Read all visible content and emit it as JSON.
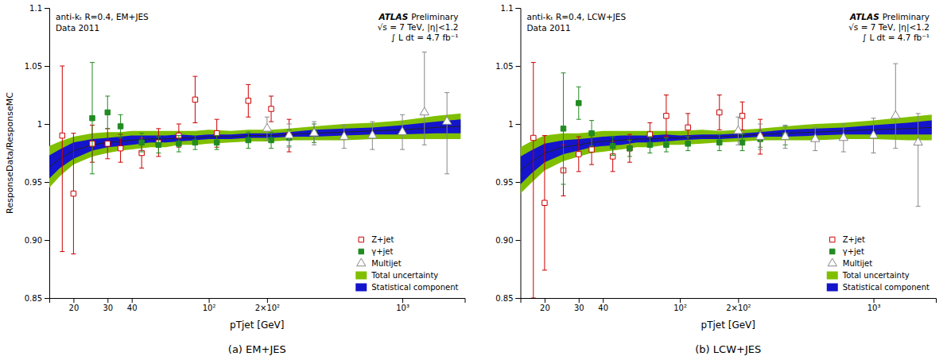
{
  "chart_data": [
    {
      "type": "scatter",
      "title": "(a) EM+JES",
      "xlabel": "pTjet [GeV]",
      "ylabel": "ResponseData/ResponseMC",
      "annotations": [
        "anti-kₜ R=0.4, EM+JES",
        "Data 2011",
        "ATLAS",
        "Preliminary",
        "√s = 7 TeV, |η|<1.2",
        "∫ L dt = 4.7 fb⁻¹"
      ],
      "log": "x",
      "xlim": [
        15,
        2100
      ],
      "ylim": [
        0.85,
        1.1
      ],
      "xticks": [
        20,
        30,
        40,
        {
          "value": 100,
          "label": "10²"
        },
        {
          "value": 200,
          "label": "2×10²"
        },
        {
          "value": 1000,
          "label": "10³"
        }
      ],
      "yticks": [
        0.85,
        {
          "value": 0.9,
          "label": "0.90"
        },
        0.95,
        1,
        1.05,
        1.1
      ],
      "grid": false,
      "legend": "lower right",
      "series": [
        {
          "name": "Z+jet",
          "type": "scatter",
          "marker": "square-open",
          "color": "#cc0000",
          "x": [
            17.5,
            20,
            25,
            30,
            35,
            45,
            55,
            70,
            85,
            110,
            160,
            210,
            260
          ],
          "values": [
            0.99,
            0.94,
            0.983,
            0.983,
            0.979,
            0.975,
            0.984,
            0.99,
            1.021,
            0.992,
            1.02,
            1.013,
            0.99
          ],
          "error_lo": [
            0.1,
            0.052,
            0.016,
            0.013,
            0.012,
            0.013,
            0.012,
            0.01,
            0.02,
            0.012,
            0.014,
            0.011,
            0.014
          ],
          "error_hi": [
            0.06,
            0.052,
            0.016,
            0.013,
            0.012,
            0.013,
            0.012,
            0.01,
            0.02,
            0.012,
            0.014,
            0.011,
            0.014
          ]
        },
        {
          "name": "γ+jet",
          "type": "scatter",
          "marker": "square",
          "color": "#228B22",
          "x": [
            25,
            30,
            35,
            45,
            55,
            70,
            85,
            110,
            160,
            210,
            260,
            350
          ],
          "values": [
            1.005,
            1.01,
            0.998,
            0.984,
            0.982,
            0.983,
            0.984,
            0.984,
            0.986,
            0.986,
            0.988,
            0.992
          ],
          "error_lo": [
            0.048,
            0.014,
            0.01,
            0.008,
            0.007,
            0.007,
            0.006,
            0.006,
            0.007,
            0.007,
            0.007,
            0.008
          ],
          "error_hi": [
            0.048,
            0.014,
            0.01,
            0.008,
            0.007,
            0.007,
            0.006,
            0.006,
            0.007,
            0.007,
            0.007,
            0.008
          ]
        },
        {
          "name": "Multijet",
          "type": "scatter",
          "marker": "triangle-open",
          "color": "#888888",
          "x": [
            200,
            260,
            350,
            500,
            700,
            1000,
            1300,
            1700
          ],
          "values": [
            0.996,
            0.99,
            0.992,
            0.989,
            0.99,
            0.993,
            1.01,
            1.002
          ],
          "error_lo": [
            0.01,
            0.01,
            0.01,
            0.01,
            0.012,
            0.015,
            0.028,
            0.045
          ],
          "error_hi": [
            0.01,
            0.01,
            0.01,
            0.01,
            0.012,
            0.015,
            0.052,
            0.025
          ]
        },
        {
          "name": "Total uncertainty",
          "type": "band",
          "color": "#7FBF00",
          "x": [
            15,
            17,
            20,
            25,
            30,
            35,
            40,
            50,
            60,
            70,
            85,
            100,
            130,
            160,
            210,
            260,
            350,
            500,
            700,
            1000,
            1500,
            2000
          ],
          "values": [
            0.963,
            0.97,
            0.977,
            0.982,
            0.984,
            0.985,
            0.986,
            0.987,
            0.987,
            0.988,
            0.988,
            0.989,
            0.989,
            0.99,
            0.99,
            0.991,
            0.992,
            0.993,
            0.994,
            0.995,
            0.997,
            0.998
          ],
          "error_lo": [
            0.018,
            0.015,
            0.012,
            0.01,
            0.009,
            0.008,
            0.008,
            0.007,
            0.007,
            0.006,
            0.006,
            0.006,
            0.005,
            0.005,
            0.005,
            0.005,
            0.006,
            0.007,
            0.007,
            0.008,
            0.01,
            0.011
          ],
          "error_hi": [
            0.018,
            0.015,
            0.012,
            0.01,
            0.009,
            0.008,
            0.008,
            0.007,
            0.007,
            0.006,
            0.006,
            0.006,
            0.005,
            0.005,
            0.005,
            0.005,
            0.006,
            0.007,
            0.007,
            0.008,
            0.01,
            0.011
          ]
        },
        {
          "name": "Statistical component",
          "type": "band",
          "color": "#1414CC",
          "x": [
            15,
            17,
            20,
            25,
            30,
            35,
            40,
            50,
            60,
            70,
            85,
            100,
            130,
            160,
            210,
            260,
            350,
            500,
            700,
            1000,
            1500,
            2000
          ],
          "values": [
            0.963,
            0.97,
            0.977,
            0.982,
            0.984,
            0.985,
            0.986,
            0.987,
            0.987,
            0.988,
            0.988,
            0.989,
            0.989,
            0.99,
            0.99,
            0.991,
            0.992,
            0.993,
            0.994,
            0.995,
            0.997,
            0.998
          ],
          "error_lo": [
            0.01,
            0.008,
            0.007,
            0.005,
            0.004,
            0.004,
            0.004,
            0.003,
            0.003,
            0.003,
            0.002,
            0.002,
            0.002,
            0.002,
            0.002,
            0.002,
            0.003,
            0.003,
            0.003,
            0.004,
            0.005,
            0.006
          ],
          "error_hi": [
            0.01,
            0.008,
            0.007,
            0.005,
            0.004,
            0.004,
            0.004,
            0.003,
            0.003,
            0.003,
            0.002,
            0.002,
            0.002,
            0.002,
            0.002,
            0.002,
            0.003,
            0.003,
            0.003,
            0.004,
            0.005,
            0.006
          ]
        }
      ]
    },
    {
      "type": "scatter",
      "title": "(b) LCW+JES",
      "xlabel": "pTjet [GeV]",
      "annotations": [
        "anti-kₜ R=0.4, LCW+JES",
        "Data 2011",
        "ATLAS",
        "Preliminary",
        "√s = 7 TeV, |η|<1.2",
        "∫ L dt = 4.7 fb⁻¹"
      ],
      "log": "x",
      "xlim": [
        15,
        2100
      ],
      "ylim": [
        0.85,
        1.1
      ],
      "xticks": [
        20,
        30,
        40,
        {
          "value": 100,
          "label": "10²"
        },
        {
          "value": 200,
          "label": "2×10²"
        },
        {
          "value": 1000,
          "label": "10³"
        }
      ],
      "yticks": [
        0.85,
        {
          "value": 0.9,
          "label": "0.90"
        },
        0.95,
        1,
        1.05,
        1.1
      ],
      "grid": false,
      "legend": "lower right",
      "series": [
        {
          "name": "Z+jet",
          "type": "scatter",
          "marker": "square-open",
          "color": "#cc0000",
          "x": [
            17.5,
            20,
            25,
            30,
            35,
            45,
            55,
            70,
            85,
            110,
            160,
            210,
            260
          ],
          "values": [
            0.988,
            0.932,
            0.96,
            0.974,
            0.978,
            0.972,
            0.979,
            0.991,
            1.007,
            0.997,
            1.01,
            1.007,
            0.989
          ],
          "error_lo": [
            0.138,
            0.058,
            0.022,
            0.015,
            0.013,
            0.013,
            0.012,
            0.01,
            0.018,
            0.012,
            0.015,
            0.012,
            0.015
          ],
          "error_hi": [
            0.065,
            0.058,
            0.022,
            0.015,
            0.013,
            0.013,
            0.012,
            0.01,
            0.018,
            0.012,
            0.015,
            0.012,
            0.015
          ]
        },
        {
          "name": "γ+jet",
          "type": "scatter",
          "marker": "square",
          "color": "#228B22",
          "x": [
            25,
            30,
            35,
            45,
            55,
            70,
            85,
            110,
            160,
            210,
            260,
            350
          ],
          "values": [
            0.996,
            1.018,
            0.992,
            0.981,
            0.979,
            0.982,
            0.982,
            0.983,
            0.984,
            0.984,
            0.987,
            0.99
          ],
          "error_lo": [
            0.048,
            0.014,
            0.011,
            0.008,
            0.007,
            0.007,
            0.006,
            0.006,
            0.007,
            0.007,
            0.007,
            0.008
          ],
          "error_hi": [
            0.048,
            0.014,
            0.011,
            0.008,
            0.007,
            0.007,
            0.006,
            0.006,
            0.007,
            0.007,
            0.007,
            0.008
          ]
        },
        {
          "name": "Multijet",
          "type": "scatter",
          "marker": "triangle-open",
          "color": "#888888",
          "x": [
            200,
            260,
            350,
            500,
            700,
            1000,
            1300,
            1700
          ],
          "values": [
            0.994,
            0.989,
            0.989,
            0.987,
            0.988,
            0.99,
            1.007,
            0.984
          ],
          "error_lo": [
            0.012,
            0.011,
            0.01,
            0.01,
            0.012,
            0.015,
            0.028,
            0.055
          ],
          "error_hi": [
            0.012,
            0.011,
            0.01,
            0.01,
            0.012,
            0.015,
            0.045,
            0.025
          ]
        },
        {
          "name": "Total uncertainty",
          "type": "band",
          "color": "#7FBF00",
          "x": [
            15,
            17,
            20,
            25,
            30,
            35,
            40,
            50,
            60,
            70,
            85,
            100,
            130,
            160,
            210,
            260,
            350,
            500,
            700,
            1000,
            1500,
            2000
          ],
          "values": [
            0.96,
            0.967,
            0.975,
            0.98,
            0.982,
            0.984,
            0.985,
            0.986,
            0.987,
            0.987,
            0.988,
            0.988,
            0.989,
            0.989,
            0.99,
            0.991,
            0.992,
            0.993,
            0.994,
            0.995,
            0.996,
            0.997
          ],
          "error_lo": [
            0.02,
            0.018,
            0.015,
            0.012,
            0.01,
            0.009,
            0.009,
            0.008,
            0.007,
            0.007,
            0.006,
            0.006,
            0.006,
            0.005,
            0.005,
            0.005,
            0.006,
            0.007,
            0.007,
            0.008,
            0.01,
            0.011
          ],
          "error_hi": [
            0.02,
            0.018,
            0.015,
            0.012,
            0.01,
            0.009,
            0.009,
            0.008,
            0.007,
            0.007,
            0.006,
            0.006,
            0.006,
            0.005,
            0.005,
            0.005,
            0.006,
            0.007,
            0.007,
            0.008,
            0.01,
            0.011
          ]
        },
        {
          "name": "Statistical component",
          "type": "band",
          "color": "#1414CC",
          "x": [
            15,
            17,
            20,
            25,
            30,
            35,
            40,
            50,
            60,
            70,
            85,
            100,
            130,
            160,
            210,
            260,
            350,
            500,
            700,
            1000,
            1500,
            2000
          ],
          "values": [
            0.96,
            0.967,
            0.975,
            0.98,
            0.982,
            0.984,
            0.985,
            0.986,
            0.987,
            0.987,
            0.988,
            0.988,
            0.989,
            0.989,
            0.99,
            0.991,
            0.992,
            0.993,
            0.994,
            0.995,
            0.996,
            0.997
          ],
          "error_lo": [
            0.012,
            0.01,
            0.008,
            0.006,
            0.005,
            0.004,
            0.004,
            0.004,
            0.003,
            0.003,
            0.003,
            0.002,
            0.002,
            0.002,
            0.002,
            0.002,
            0.003,
            0.003,
            0.003,
            0.004,
            0.005,
            0.006
          ],
          "error_hi": [
            0.012,
            0.01,
            0.008,
            0.006,
            0.005,
            0.004,
            0.004,
            0.004,
            0.003,
            0.003,
            0.003,
            0.002,
            0.002,
            0.002,
            0.002,
            0.002,
            0.003,
            0.003,
            0.003,
            0.004,
            0.005,
            0.006
          ]
        }
      ]
    }
  ]
}
